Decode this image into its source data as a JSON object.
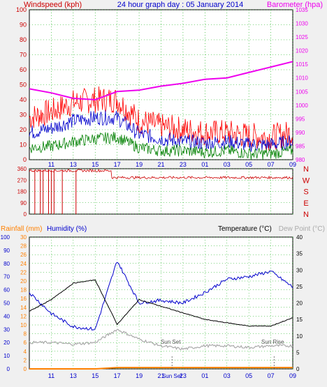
{
  "header": {
    "left": "Windspeed (kph)",
    "title": "24 hour graph day : 05 January 2014",
    "right": "Barometer (hpa)"
  },
  "colors": {
    "bg": "#f0f0f0",
    "plot_bg": "#ffffff",
    "grid": "#00aa00",
    "wind_gust": "#ff0000",
    "wind_avg": "#0000cc",
    "wind_low": "#008000",
    "barometer": "#ee00ee",
    "direction": "#cc0000",
    "rain": "#ff8000",
    "humidity": "#0000cc",
    "temperature": "#000000",
    "dewpoint": "#aaaaaa",
    "axis_red": "#cc0000",
    "axis_blue": "#0000cc",
    "axis_orange": "#ff8000"
  },
  "chart_data": [
    {
      "type": "line",
      "name": "wind_barometer",
      "x": [
        "09",
        "11",
        "13",
        "15",
        "17",
        "19",
        "21",
        "23",
        "01",
        "03",
        "05",
        "07",
        "09"
      ],
      "xticks": [
        "11",
        "13",
        "15",
        "17",
        "19",
        "21",
        "23",
        "01",
        "03",
        "05",
        "07",
        "09"
      ],
      "ylabel": "Windspeed (kph)",
      "ylim": [
        0,
        100
      ],
      "yticks": [
        0,
        10,
        20,
        30,
        40,
        50,
        60,
        70,
        80,
        90,
        100
      ],
      "y2label": "Barometer (hpa)",
      "y2lim": [
        980,
        1035
      ],
      "y2ticks": [
        980,
        985,
        990,
        995,
        1000,
        1005,
        1010,
        1015,
        1020,
        1025,
        1030,
        1035
      ],
      "grid": true,
      "series": [
        {
          "name": "gust",
          "axis": "y",
          "values": [
            28,
            32,
            38,
            40,
            40,
            26,
            22,
            20,
            18,
            18,
            16,
            15,
            18
          ]
        },
        {
          "name": "avg",
          "axis": "y",
          "values": [
            18,
            21,
            26,
            28,
            28,
            17,
            14,
            12,
            11,
            12,
            10,
            10,
            12
          ]
        },
        {
          "name": "low",
          "axis": "y",
          "values": [
            8,
            9,
            12,
            14,
            15,
            8,
            6,
            6,
            5,
            6,
            4,
            4,
            6
          ]
        },
        {
          "name": "barometer",
          "axis": "y2",
          "values": [
            1006,
            1004.5,
            1002.5,
            1002,
            1005,
            1005.5,
            1007,
            1008,
            1009.5,
            1010,
            1012,
            1014,
            1016
          ]
        }
      ]
    },
    {
      "type": "scatter",
      "name": "wind_direction",
      "yticks": [
        0,
        90,
        180,
        270,
        360
      ],
      "ylim": [
        0,
        360
      ],
      "compass": [
        "N",
        "W",
        "S",
        "E",
        "N"
      ],
      "segments": [
        {
          "from": "09",
          "to": "16:30",
          "values": [
            340,
            350,
            345
          ]
        },
        {
          "from": "16:30",
          "to": "09",
          "values": [
            280,
            300,
            295,
            290
          ]
        }
      ],
      "dropouts": [
        "09:30",
        "10:00",
        "10:15",
        "10:45",
        "11:00",
        "11:15",
        "12:00",
        "13:15"
      ]
    },
    {
      "type": "line",
      "name": "rain_humidity_temp",
      "xticks": [
        "11",
        "13",
        "15",
        "17",
        "19",
        "21",
        "Sun Set",
        "23",
        "01",
        "03",
        "05",
        "07",
        "09"
      ],
      "rain_label": "Rainfall (mm)",
      "rain_lim": [
        0,
        30
      ],
      "rain_ticks": [
        0,
        2,
        4,
        6,
        8,
        10,
        12,
        14,
        16,
        18,
        20,
        22,
        24,
        26,
        28,
        30
      ],
      "hum_label": "Humidity (%)",
      "hum_lim": [
        0,
        100
      ],
      "hum_ticks": [
        0,
        10,
        20,
        30,
        40,
        50,
        60,
        70,
        80,
        90,
        100
      ],
      "temp_label": "Temperature (°C)",
      "dew_label": "Dew Point (°C)",
      "temp_lim": [
        0,
        40
      ],
      "temp_ticks": [
        0,
        5,
        10,
        15,
        20,
        25,
        30,
        35,
        40
      ],
      "annotations": [
        "Sun Set",
        "Sun Rise"
      ],
      "series": [
        {
          "name": "rain",
          "axis": "rain",
          "values": [
            0,
            0,
            0,
            0,
            0.3,
            0.3,
            0.3,
            0.3,
            0.3,
            0.3,
            0.3,
            0.3,
            0.3
          ]
        },
        {
          "name": "humidity",
          "axis": "hum",
          "values": [
            58,
            42,
            32,
            30,
            82,
            50,
            52,
            50,
            58,
            68,
            70,
            74,
            62
          ]
        },
        {
          "name": "temperature",
          "axis": "temp",
          "values": [
            17.5,
            21,
            26,
            27,
            13.5,
            21,
            19,
            17,
            15,
            14,
            13,
            13,
            15.5
          ]
        },
        {
          "name": "dewpoint",
          "axis": "temp",
          "values": [
            8,
            8,
            7.5,
            8,
            12,
            9,
            7,
            6,
            7,
            7,
            6.5,
            7,
            7
          ]
        }
      ]
    }
  ]
}
